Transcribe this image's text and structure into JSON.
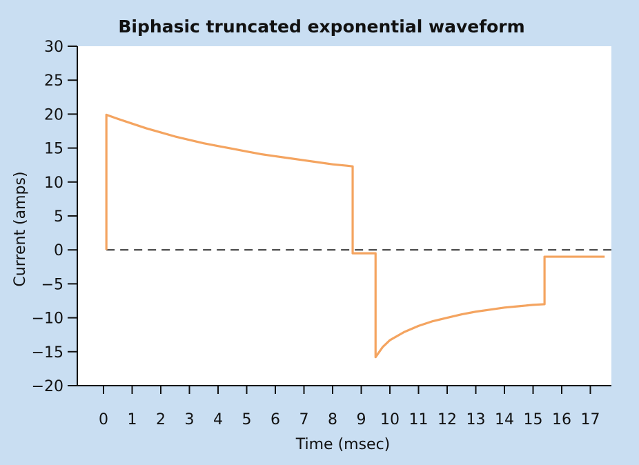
{
  "chart_data": {
    "type": "line",
    "title": "Biphasic truncated exponential waveform",
    "xlabel": "Time (msec)",
    "ylabel": "Current (amps)",
    "xlim": [
      -1,
      17.5
    ],
    "ylim": [
      -20,
      30
    ],
    "x_ticks": [
      "0",
      "1",
      "2",
      "3",
      "4",
      "5",
      "6",
      "7",
      "8",
      "9",
      "10",
      "11",
      "12",
      "13",
      "14",
      "15",
      "16",
      "17"
    ],
    "y_ticks": [
      "30",
      "25",
      "20",
      "15",
      "10",
      "5",
      "0",
      "−5",
      "−10",
      "−15",
      "−20"
    ],
    "grid": false,
    "baseline": {
      "y": 0,
      "style": "dashed"
    },
    "series": [
      {
        "color": "#f4a460",
        "x": [
          0.1,
          0.1,
          0.5,
          1,
          1.5,
          2,
          2.5,
          3,
          3.5,
          4,
          4.5,
          5,
          5.5,
          6,
          6.5,
          7,
          7.5,
          8,
          8.5,
          8.7,
          8.7,
          9.5,
          9.5,
          9.75,
          10,
          10.5,
          11,
          11.5,
          12,
          12.5,
          13,
          13.5,
          14,
          14.5,
          15,
          15.4,
          15.4,
          17.5
        ],
        "y": [
          0,
          19.9,
          19.3,
          18.6,
          17.9,
          17.3,
          16.7,
          16.2,
          15.7,
          15.3,
          14.9,
          14.5,
          14.1,
          13.8,
          13.5,
          13.2,
          12.9,
          12.6,
          12.4,
          12.3,
          -0.5,
          -0.5,
          -15.8,
          -14.3,
          -13.3,
          -12.1,
          -11.2,
          -10.5,
          -10,
          -9.5,
          -9.1,
          -8.8,
          -8.5,
          -8.3,
          -8.1,
          -8,
          -1,
          -1
        ]
      }
    ]
  }
}
